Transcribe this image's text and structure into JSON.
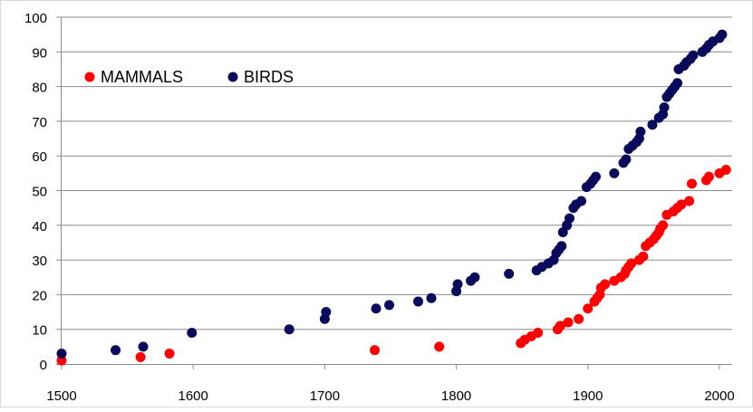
{
  "chart_data": {
    "type": "scatter",
    "title": "",
    "xlabel": "",
    "ylabel": "",
    "xlim": [
      1500,
      2010
    ],
    "ylim": [
      0,
      100
    ],
    "x_ticks": [
      1500,
      1600,
      1700,
      1800,
      1900,
      2000
    ],
    "y_ticks": [
      0,
      10,
      20,
      30,
      40,
      50,
      60,
      70,
      80,
      90,
      100
    ],
    "grid": "horizontal",
    "legend_position": "top-left",
    "series": [
      {
        "name": "MAMMALS",
        "color": "#ff0000",
        "points": [
          [
            1500,
            1
          ],
          [
            1560,
            2
          ],
          [
            1582,
            3
          ],
          [
            1738,
            4
          ],
          [
            1787,
            5
          ],
          [
            1849,
            6
          ],
          [
            1852,
            7
          ],
          [
            1857,
            8
          ],
          [
            1862,
            9
          ],
          [
            1877,
            10
          ],
          [
            1879,
            11
          ],
          [
            1885,
            12
          ],
          [
            1893,
            13
          ],
          [
            1900,
            16
          ],
          [
            1905,
            18
          ],
          [
            1907,
            19
          ],
          [
            1909,
            20
          ],
          [
            1910,
            22
          ],
          [
            1913,
            23
          ],
          [
            1920,
            24
          ],
          [
            1925,
            25
          ],
          [
            1928,
            26
          ],
          [
            1929,
            27
          ],
          [
            1931,
            28
          ],
          [
            1933,
            29
          ],
          [
            1939,
            30
          ],
          [
            1942,
            31
          ],
          [
            1944,
            34
          ],
          [
            1947,
            35
          ],
          [
            1950,
            36
          ],
          [
            1952,
            37
          ],
          [
            1954,
            38
          ],
          [
            1955,
            39
          ],
          [
            1957,
            40
          ],
          [
            1960,
            43
          ],
          [
            1965,
            44
          ],
          [
            1968,
            45
          ],
          [
            1971,
            46
          ],
          [
            1977,
            47
          ],
          [
            1979,
            52
          ],
          [
            1990,
            53
          ],
          [
            1992,
            54
          ],
          [
            2000,
            55
          ],
          [
            2005,
            56
          ]
        ]
      },
      {
        "name": "BIRDS",
        "color": "#0a0a5c",
        "points": [
          [
            1500,
            3
          ],
          [
            1541,
            4
          ],
          [
            1562,
            5
          ],
          [
            1599,
            9
          ],
          [
            1673,
            10
          ],
          [
            1700,
            13
          ],
          [
            1701,
            15
          ],
          [
            1739,
            16
          ],
          [
            1749,
            17
          ],
          [
            1771,
            18
          ],
          [
            1781,
            19
          ],
          [
            1800,
            21
          ],
          [
            1801,
            23
          ],
          [
            1811,
            24
          ],
          [
            1814,
            25
          ],
          [
            1840,
            26
          ],
          [
            1861,
            27
          ],
          [
            1865,
            28
          ],
          [
            1870,
            29
          ],
          [
            1874,
            30
          ],
          [
            1876,
            32
          ],
          [
            1878,
            33
          ],
          [
            1880,
            34
          ],
          [
            1881,
            38
          ],
          [
            1884,
            40
          ],
          [
            1886,
            42
          ],
          [
            1889,
            45
          ],
          [
            1891,
            46
          ],
          [
            1895,
            47
          ],
          [
            1899,
            51
          ],
          [
            1902,
            52
          ],
          [
            1904,
            53
          ],
          [
            1906,
            54
          ],
          [
            1920,
            55
          ],
          [
            1927,
            58
          ],
          [
            1929,
            59
          ],
          [
            1931,
            62
          ],
          [
            1934,
            63
          ],
          [
            1937,
            64
          ],
          [
            1939,
            65
          ],
          [
            1940,
            67
          ],
          [
            1949,
            69
          ],
          [
            1954,
            71
          ],
          [
            1957,
            72
          ],
          [
            1958,
            74
          ],
          [
            1960,
            77
          ],
          [
            1962,
            78
          ],
          [
            1964,
            79
          ],
          [
            1966,
            80
          ],
          [
            1968,
            81
          ],
          [
            1969,
            85
          ],
          [
            1973,
            86
          ],
          [
            1975,
            87
          ],
          [
            1978,
            88
          ],
          [
            1980,
            89
          ],
          [
            1987,
            90
          ],
          [
            1990,
            91
          ],
          [
            1992,
            92
          ],
          [
            1995,
            93
          ],
          [
            2000,
            94
          ],
          [
            2002,
            95
          ]
        ]
      }
    ]
  }
}
